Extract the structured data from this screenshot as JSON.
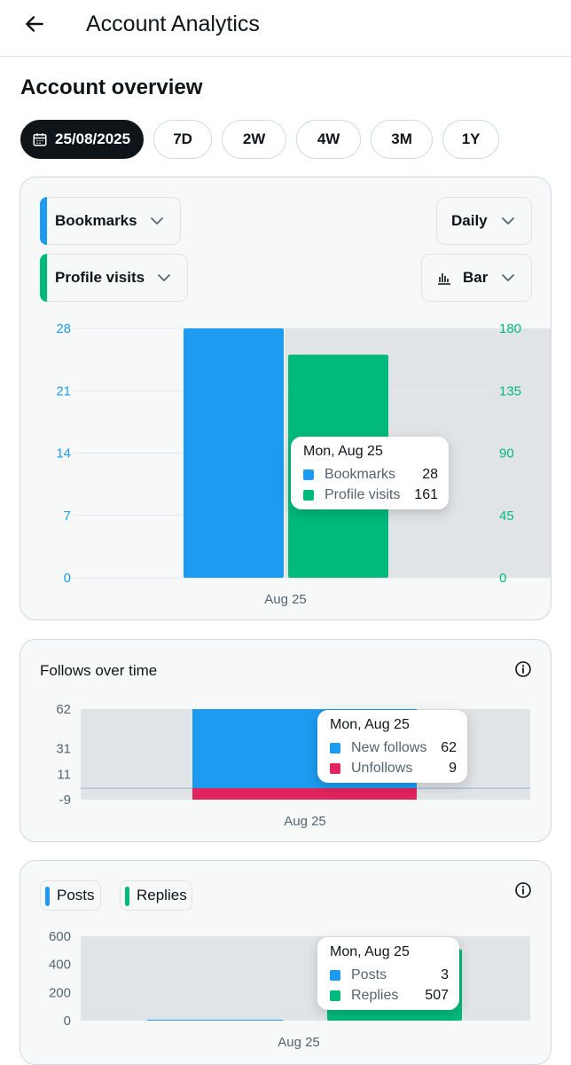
{
  "header": {
    "title": "Account Analytics",
    "back_icon": "arrow-left-icon"
  },
  "overview": {
    "title": "Account overview",
    "date_chip": "25/08/2025",
    "ranges": [
      "7D",
      "2W",
      "4W",
      "3M",
      "1Y"
    ]
  },
  "colors": {
    "blue": "#1d9bf0",
    "green": "#00ba7c",
    "red": "#e0245e"
  },
  "main_chart": {
    "metric1": "Bookmarks",
    "metric2": "Profile visits",
    "interval": "Daily",
    "chart_type": "Bar",
    "tooltip": {
      "title": "Mon, Aug 25",
      "rows": [
        {
          "name": "Bookmarks",
          "value": "28"
        },
        {
          "name": "Profile visits",
          "value": "161"
        }
      ]
    }
  },
  "follows": {
    "title": "Follows over time",
    "tooltip": {
      "title": "Mon, Aug 25",
      "rows": [
        {
          "name": "New follows",
          "value": "62"
        },
        {
          "name": "Unfollows",
          "value": "9"
        }
      ]
    }
  },
  "posts": {
    "legend": [
      "Posts",
      "Replies"
    ],
    "tooltip": {
      "title": "Mon, Aug 25",
      "rows": [
        {
          "name": "Posts",
          "value": "3"
        },
        {
          "name": "Replies",
          "value": "507"
        }
      ]
    }
  },
  "chart_data": [
    {
      "type": "bar",
      "categories": [
        "Aug 25"
      ],
      "series": [
        {
          "name": "Bookmarks",
          "values": [
            28
          ],
          "axis": "left"
        },
        {
          "name": "Profile visits",
          "values": [
            161
          ],
          "axis": "right"
        }
      ],
      "left_ticks": [
        "0",
        "7",
        "14",
        "21",
        "28"
      ],
      "right_ticks": [
        "0",
        "45",
        "90",
        "135",
        "180"
      ],
      "ylim_left": [
        0,
        28
      ],
      "ylim_right": [
        0,
        180
      ]
    },
    {
      "type": "bar",
      "categories": [
        "Aug 25"
      ],
      "series": [
        {
          "name": "New follows",
          "values": [
            62
          ]
        },
        {
          "name": "Unfollows",
          "values": [
            -9
          ]
        }
      ],
      "y_ticks": [
        "62",
        "31",
        "11",
        "-9"
      ],
      "ylim": [
        -9,
        62
      ]
    },
    {
      "type": "bar",
      "categories": [
        "Aug 25"
      ],
      "series": [
        {
          "name": "Posts",
          "values": [
            3
          ]
        },
        {
          "name": "Replies",
          "values": [
            507
          ]
        }
      ],
      "y_ticks": [
        "600",
        "400",
        "200",
        "0"
      ],
      "ylim": [
        0,
        600
      ]
    }
  ]
}
